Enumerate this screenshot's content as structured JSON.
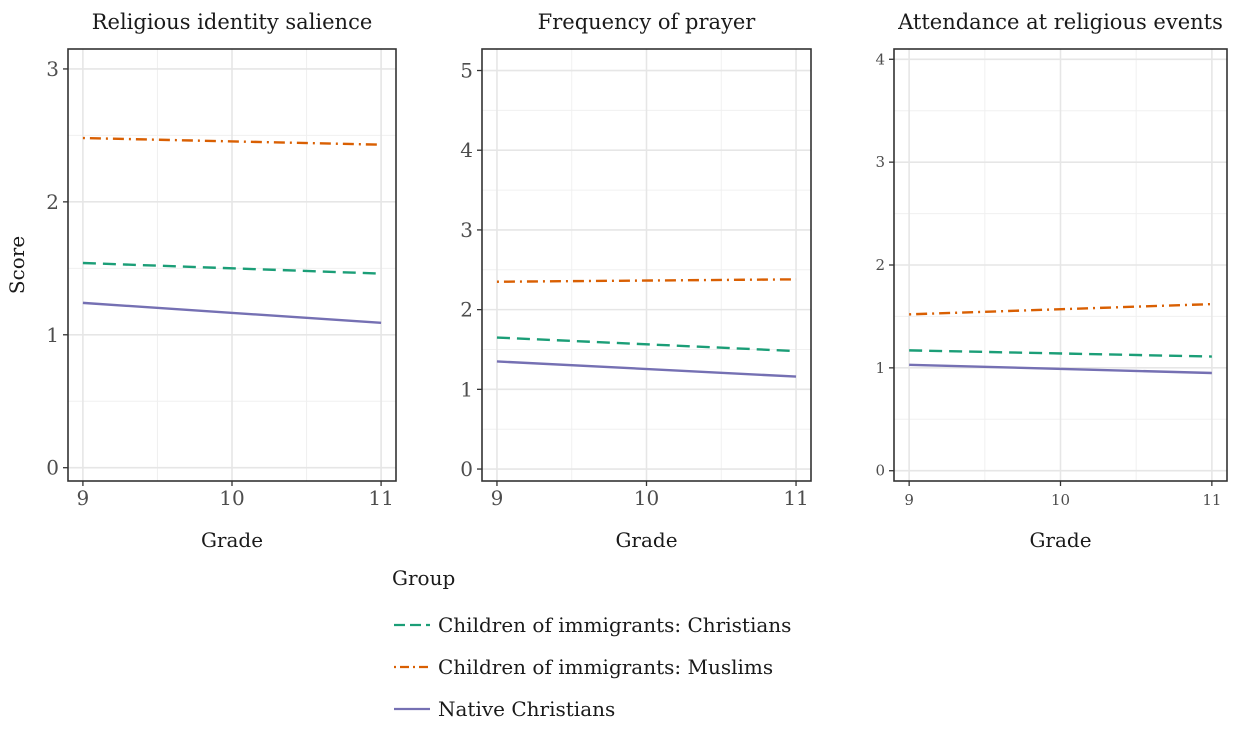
{
  "chart_data": [
    {
      "type": "line",
      "title": "Religious identity  salience",
      "xlabel": "Grade",
      "ylabel": "Score",
      "x": [
        9,
        11
      ],
      "xticks": [
        9,
        10,
        11
      ],
      "yticks": [
        0,
        1,
        2,
        3
      ],
      "xlim": [
        8.9,
        11.1
      ],
      "ylim": [
        -0.1,
        3.15
      ],
      "grid": true,
      "series": [
        {
          "name": "Children of immigrants: Christians",
          "values": [
            1.54,
            1.46
          ]
        },
        {
          "name": "Children of immigrants: Muslims",
          "values": [
            2.48,
            2.43
          ]
        },
        {
          "name": "Native Christians",
          "values": [
            1.24,
            1.09
          ]
        }
      ]
    },
    {
      "type": "line",
      "title": "Frequency of prayer",
      "xlabel": "Grade",
      "ylabel": "",
      "x": [
        9,
        11
      ],
      "xticks": [
        9,
        10,
        11
      ],
      "yticks": [
        0,
        1,
        2,
        3,
        4,
        5
      ],
      "xlim": [
        8.9,
        11.1
      ],
      "ylim": [
        -0.15,
        5.27
      ],
      "grid": true,
      "series": [
        {
          "name": "Children of immigrants: Christians",
          "values": [
            1.65,
            1.48
          ]
        },
        {
          "name": "Children of immigrants: Muslims",
          "values": [
            2.35,
            2.38
          ]
        },
        {
          "name": "Native Christians",
          "values": [
            1.35,
            1.16
          ]
        }
      ]
    },
    {
      "type": "line",
      "title": "Attendance at religious events",
      "xlabel": "Grade",
      "ylabel": "",
      "x": [
        9,
        11
      ],
      "xticks": [
        9,
        10,
        11
      ],
      "yticks": [
        0,
        1,
        2,
        3,
        4
      ],
      "xlim": [
        8.9,
        11.1
      ],
      "ylim": [
        -0.1,
        4.1
      ],
      "grid": true,
      "series": [
        {
          "name": "Children of immigrants: Christians",
          "values": [
            1.17,
            1.11
          ]
        },
        {
          "name": "Children of immigrants: Muslims",
          "values": [
            1.52,
            1.62
          ]
        },
        {
          "name": "Native Christians",
          "values": [
            1.03,
            0.95
          ]
        }
      ]
    }
  ],
  "legend": {
    "title": "Group",
    "placement": "bottom",
    "items": [
      {
        "label": "Children of immigrants: Christians",
        "color": "#1b9e77",
        "dash": "dashed"
      },
      {
        "label": "Children of immigrants: Muslims",
        "color": "#d95f02",
        "dash": "dotdash"
      },
      {
        "label": "Native Christians",
        "color": "#7570b3",
        "dash": "solid"
      }
    ]
  }
}
